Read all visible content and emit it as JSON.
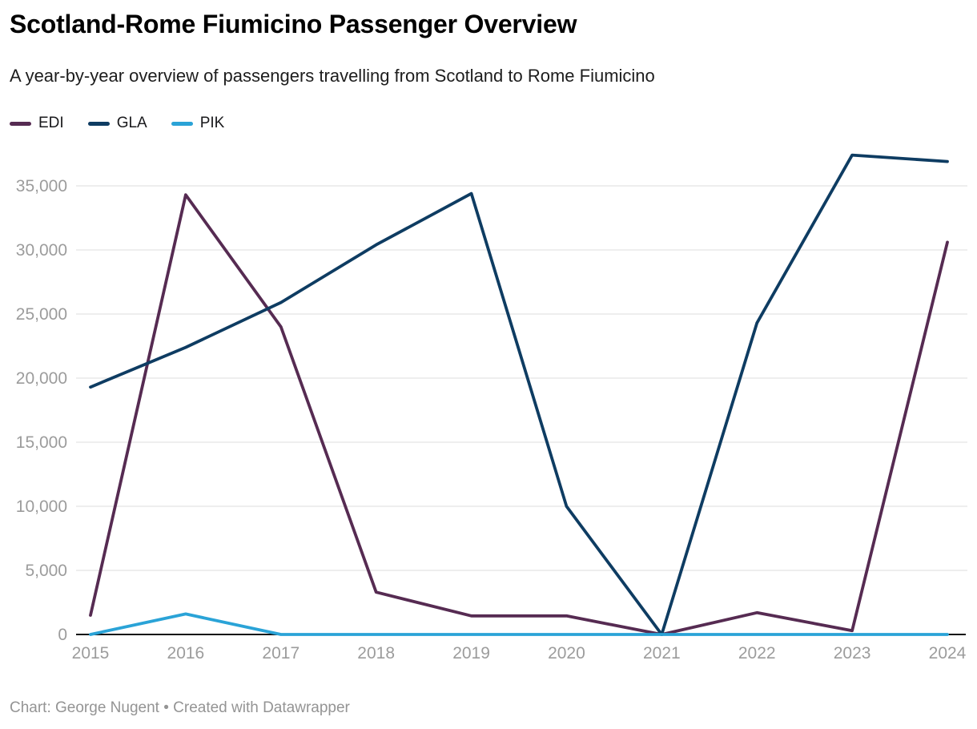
{
  "header": {
    "title": "Scotland-Rome Fiumicino Passenger Overview",
    "subtitle": "A year-by-year overview of passengers travelling from Scotland to Rome Fiumicino"
  },
  "legend": {
    "items": [
      {
        "label": "EDI",
        "color": "#562b52"
      },
      {
        "label": "GLA",
        "color": "#0e3c62"
      },
      {
        "label": "PIK",
        "color": "#2aa3d7"
      }
    ]
  },
  "footer": {
    "credit": "Chart: George Nugent • Created with Datawrapper"
  },
  "colors": {
    "gridline": "#e4e4e4",
    "axis": "#111111",
    "tick_label": "#9c9c9c"
  },
  "chart_data": {
    "type": "line",
    "title": "Scotland-Rome Fiumicino Passenger Overview",
    "subtitle": "A year-by-year overview of passengers travelling from Scotland to Rome Fiumicino",
    "xlabel": "",
    "ylabel": "",
    "categories": [
      "2015",
      "2016",
      "2017",
      "2018",
      "2019",
      "2020",
      "2021",
      "2022",
      "2023",
      "2024"
    ],
    "series": [
      {
        "name": "EDI",
        "color": "#562b52",
        "values": [
          1500,
          34300,
          24000,
          3300,
          1450,
          1450,
          0,
          1700,
          300,
          30600
        ]
      },
      {
        "name": "GLA",
        "color": "#0e3c62",
        "values": [
          19300,
          22400,
          25900,
          30400,
          34400,
          10000,
          0,
          24300,
          37400,
          36900
        ]
      },
      {
        "name": "PIK",
        "color": "#2aa3d7",
        "values": [
          0,
          1600,
          0,
          0,
          0,
          0,
          0,
          0,
          0,
          0
        ]
      }
    ],
    "yticks": [
      0,
      5000,
      10000,
      15000,
      20000,
      25000,
      30000,
      35000
    ],
    "ylim": [
      0,
      37800
    ],
    "grid": true,
    "legend_position": "top-left"
  }
}
